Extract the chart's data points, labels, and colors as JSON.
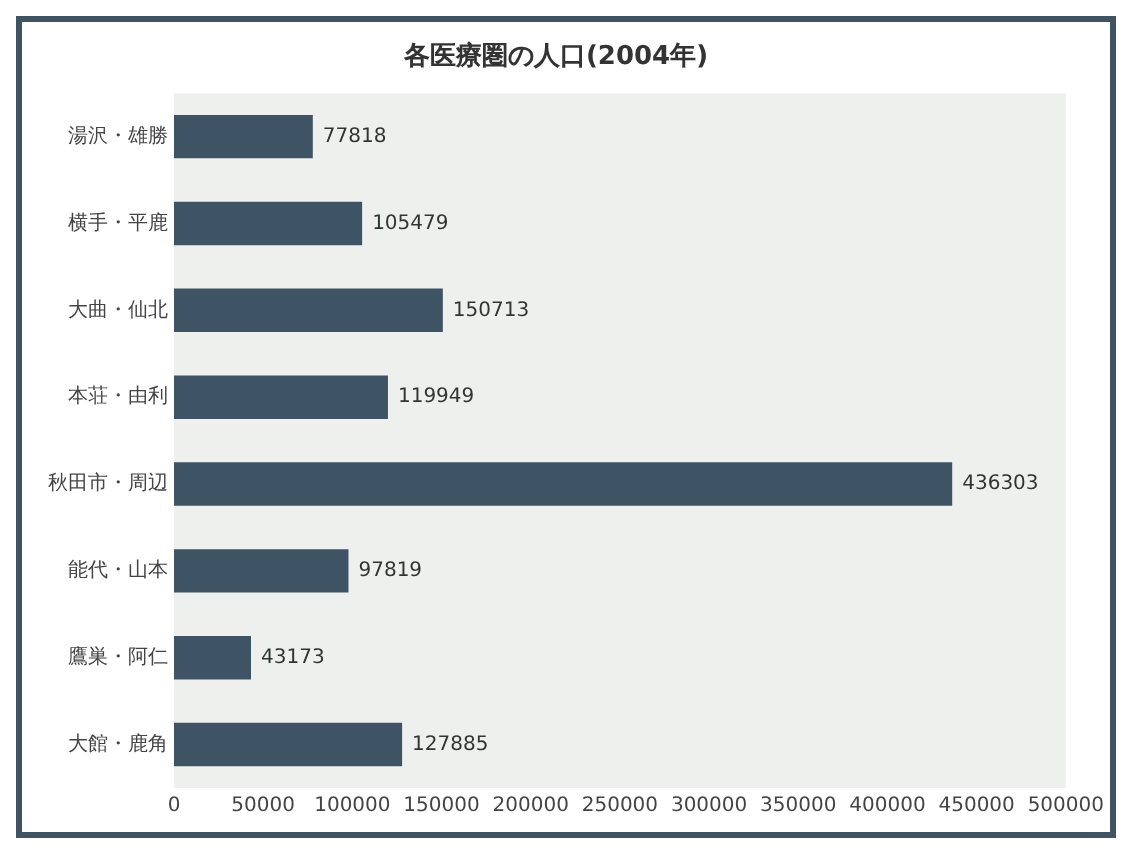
{
  "chart_data": {
    "type": "bar",
    "orientation": "horizontal",
    "title": "各医療圏の人口(2004年)",
    "categories": [
      "湯沢・雄勝",
      "横手・平鹿",
      "大曲・仙北",
      "本荘・由利",
      "秋田市・周辺",
      "能代・山本",
      "鷹巣・阿仁",
      "大館・鹿角"
    ],
    "values": [
      77818,
      105479,
      150713,
      119949,
      436303,
      97819,
      43173,
      127885
    ],
    "color": "#3e5363",
    "xlim": [
      0,
      500000
    ],
    "xticks": [
      0,
      50000,
      100000,
      150000,
      200000,
      250000,
      300000,
      350000,
      400000,
      450000,
      500000
    ],
    "data_labels": true,
    "grid": false,
    "legend": false
  }
}
